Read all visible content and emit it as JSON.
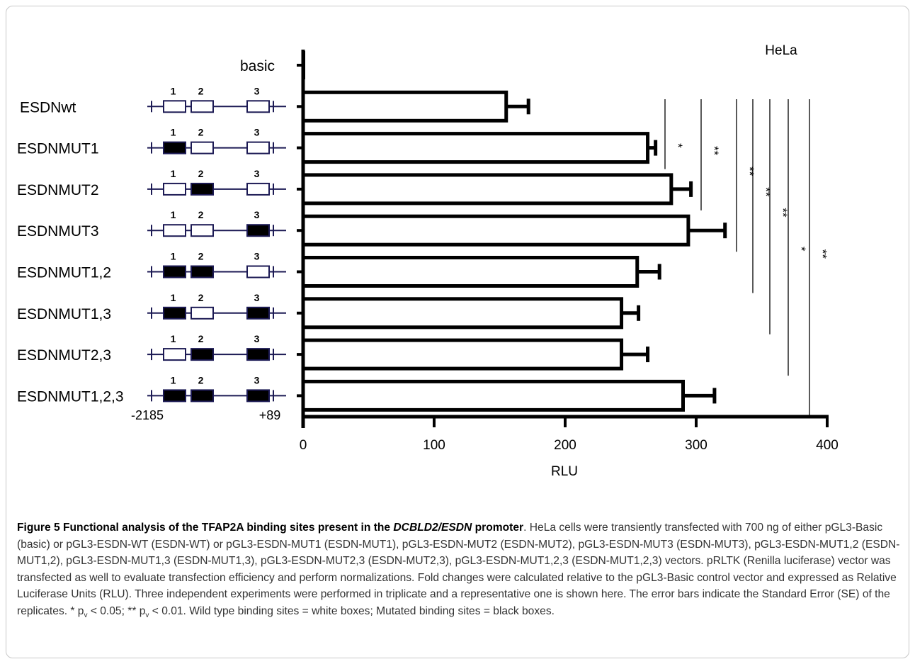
{
  "chart_data": {
    "type": "bar",
    "orientation": "horizontal",
    "panel_label": "HeLa",
    "xlabel": "RLU",
    "xlim": [
      0,
      400
    ],
    "xticks": [
      0,
      100,
      200,
      300,
      400
    ],
    "categories": [
      "basic",
      "ESDNwt",
      "ESDNMUT1",
      "ESDNMUT2",
      "ESDNMUT3",
      "ESDNMUT1,2",
      "ESDNMUT1,3",
      "ESDNMUT2,3",
      "ESDNMUT1,2,3"
    ],
    "values": [
      1,
      155,
      263,
      281,
      294,
      255,
      243,
      243,
      290
    ],
    "errors": [
      0,
      17,
      6,
      15,
      28,
      17,
      13,
      20,
      24
    ],
    "fill": "#ffffff",
    "stroke": "#000000",
    "promoter_diagram": {
      "site_labels": [
        "1",
        "2",
        "3"
      ],
      "start_label": "-2185",
      "end_label": "+89",
      "line_color": "#1c1a54",
      "mutated_sites": [
        [],
        [
          1
        ],
        [
          2
        ],
        [
          3
        ],
        [
          1,
          2
        ],
        [
          1,
          3
        ],
        [
          2,
          3
        ],
        [
          1,
          2,
          3
        ]
      ]
    },
    "significance": [
      {
        "label": "*",
        "from": 1,
        "to": 2
      },
      {
        "label": "**",
        "from": 1,
        "to": 3
      },
      {
        "label": "**",
        "from": 1,
        "to": 4
      },
      {
        "label": "**",
        "from": 1,
        "to": 5
      },
      {
        "label": "**",
        "from": 1,
        "to": 6
      },
      {
        "label": "*",
        "from": 1,
        "to": 7
      },
      {
        "label": "**",
        "from": 1,
        "to": 8
      }
    ]
  },
  "caption": {
    "title_part1": "Figure 5 Functional analysis of the TFAP2A binding sites present in the ",
    "title_italic": "DCBLD2/ESDN",
    "title_part2": " promoter",
    "text_1": ". HeLa cells were transiently transfected with 700 ng of either pGL3-Basic (basic) or pGL3-ESDN-WT (ESDN-WT) or pGL3-ESDN-MUT1 (ESDN-MUT1), pGL3-ESDN-MUT2 (ESDN-MUT2), pGL3-ESDN-MUT3 (ESDN-MUT3), pGL3-ESDN-MUT1,2 (ESDN-MUT1,2), pGL3-ESDN-MUT1,3 (ESDN-MUT1,3), pGL3-ESDN-MUT2,3 (ESDN-MUT2,3), pGL3-ESDN-MUT1,2,3 (ESDN-MUT1,2,3) vectors. pRLTK (Renilla luciferase) vector was transfected as well to evaluate transfection efficiency and perform normalizations. Fold changes were calculated relative to the pGL3-Basic control vector and expressed as Relative Luciferase Units (RLU). Three independent experiments were performed in triplicate and a representative one is shown here. The error bars indicate the Standard Error (SE) of the replicates. * p",
    "sub_v": "v",
    "text_2": " < 0.05; ** p",
    "text_3": " < 0.01. Wild type binding sites = white boxes; Mutated binding sites = black boxes."
  }
}
